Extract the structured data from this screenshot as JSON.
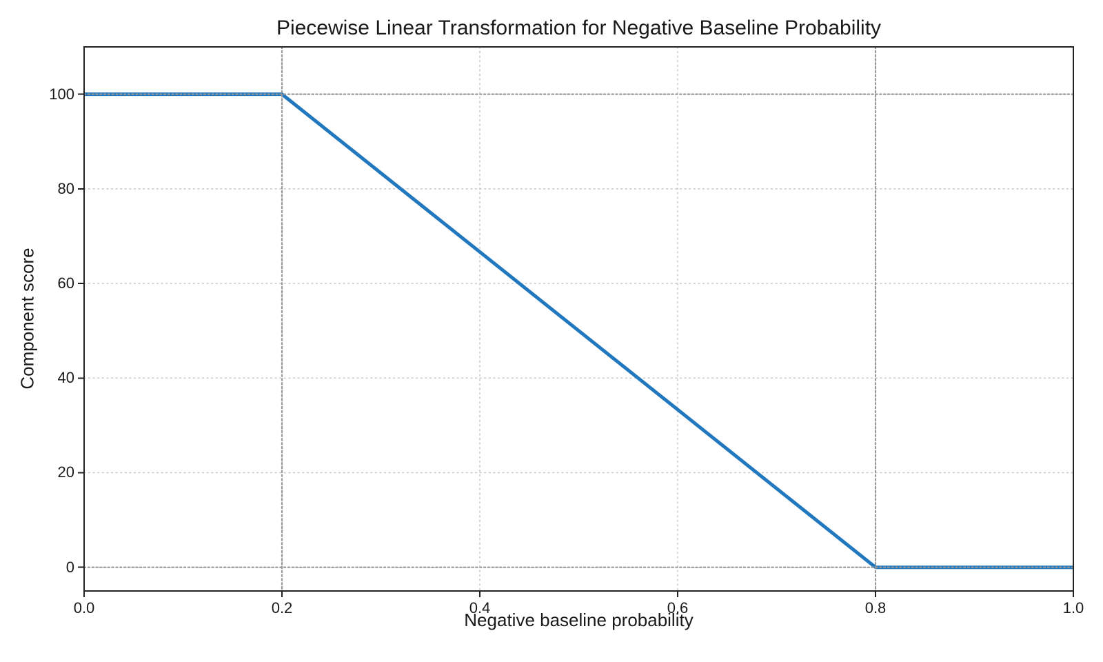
{
  "chart_data": {
    "type": "line",
    "title": "Piecewise Linear Transformation for Negative Baseline Probability",
    "xlabel": "Negative baseline probability",
    "ylabel": "Component score",
    "series": [
      {
        "name": "component-score-curve",
        "color": "#2178be",
        "linewidth": 5,
        "points": [
          [
            0.0,
            100
          ],
          [
            0.2,
            100
          ],
          [
            0.8,
            0
          ],
          [
            1.0,
            0
          ]
        ]
      }
    ],
    "xticks": {
      "values": [
        0.0,
        0.2,
        0.4,
        0.6,
        0.8,
        1.0
      ],
      "labels": [
        "0.0",
        "0.2",
        "0.4",
        "0.6",
        "0.8",
        "1.0"
      ]
    },
    "yticks": {
      "values": [
        0,
        20,
        40,
        60,
        80,
        100
      ],
      "labels": [
        "0",
        "20",
        "40",
        "60",
        "80",
        "100"
      ]
    },
    "xlim": [
      0.0,
      1.0
    ],
    "ylim": [
      -5,
      110
    ],
    "grid": {
      "on": true,
      "style": "dotted",
      "color": "#c9c9c9"
    },
    "reference_lines": {
      "x": [
        0.2,
        0.8
      ],
      "y": [
        0,
        100
      ],
      "style": "dotted",
      "color": "#979797"
    },
    "spine_color": "#222222",
    "background": "#ffffff",
    "legend": "none"
  }
}
